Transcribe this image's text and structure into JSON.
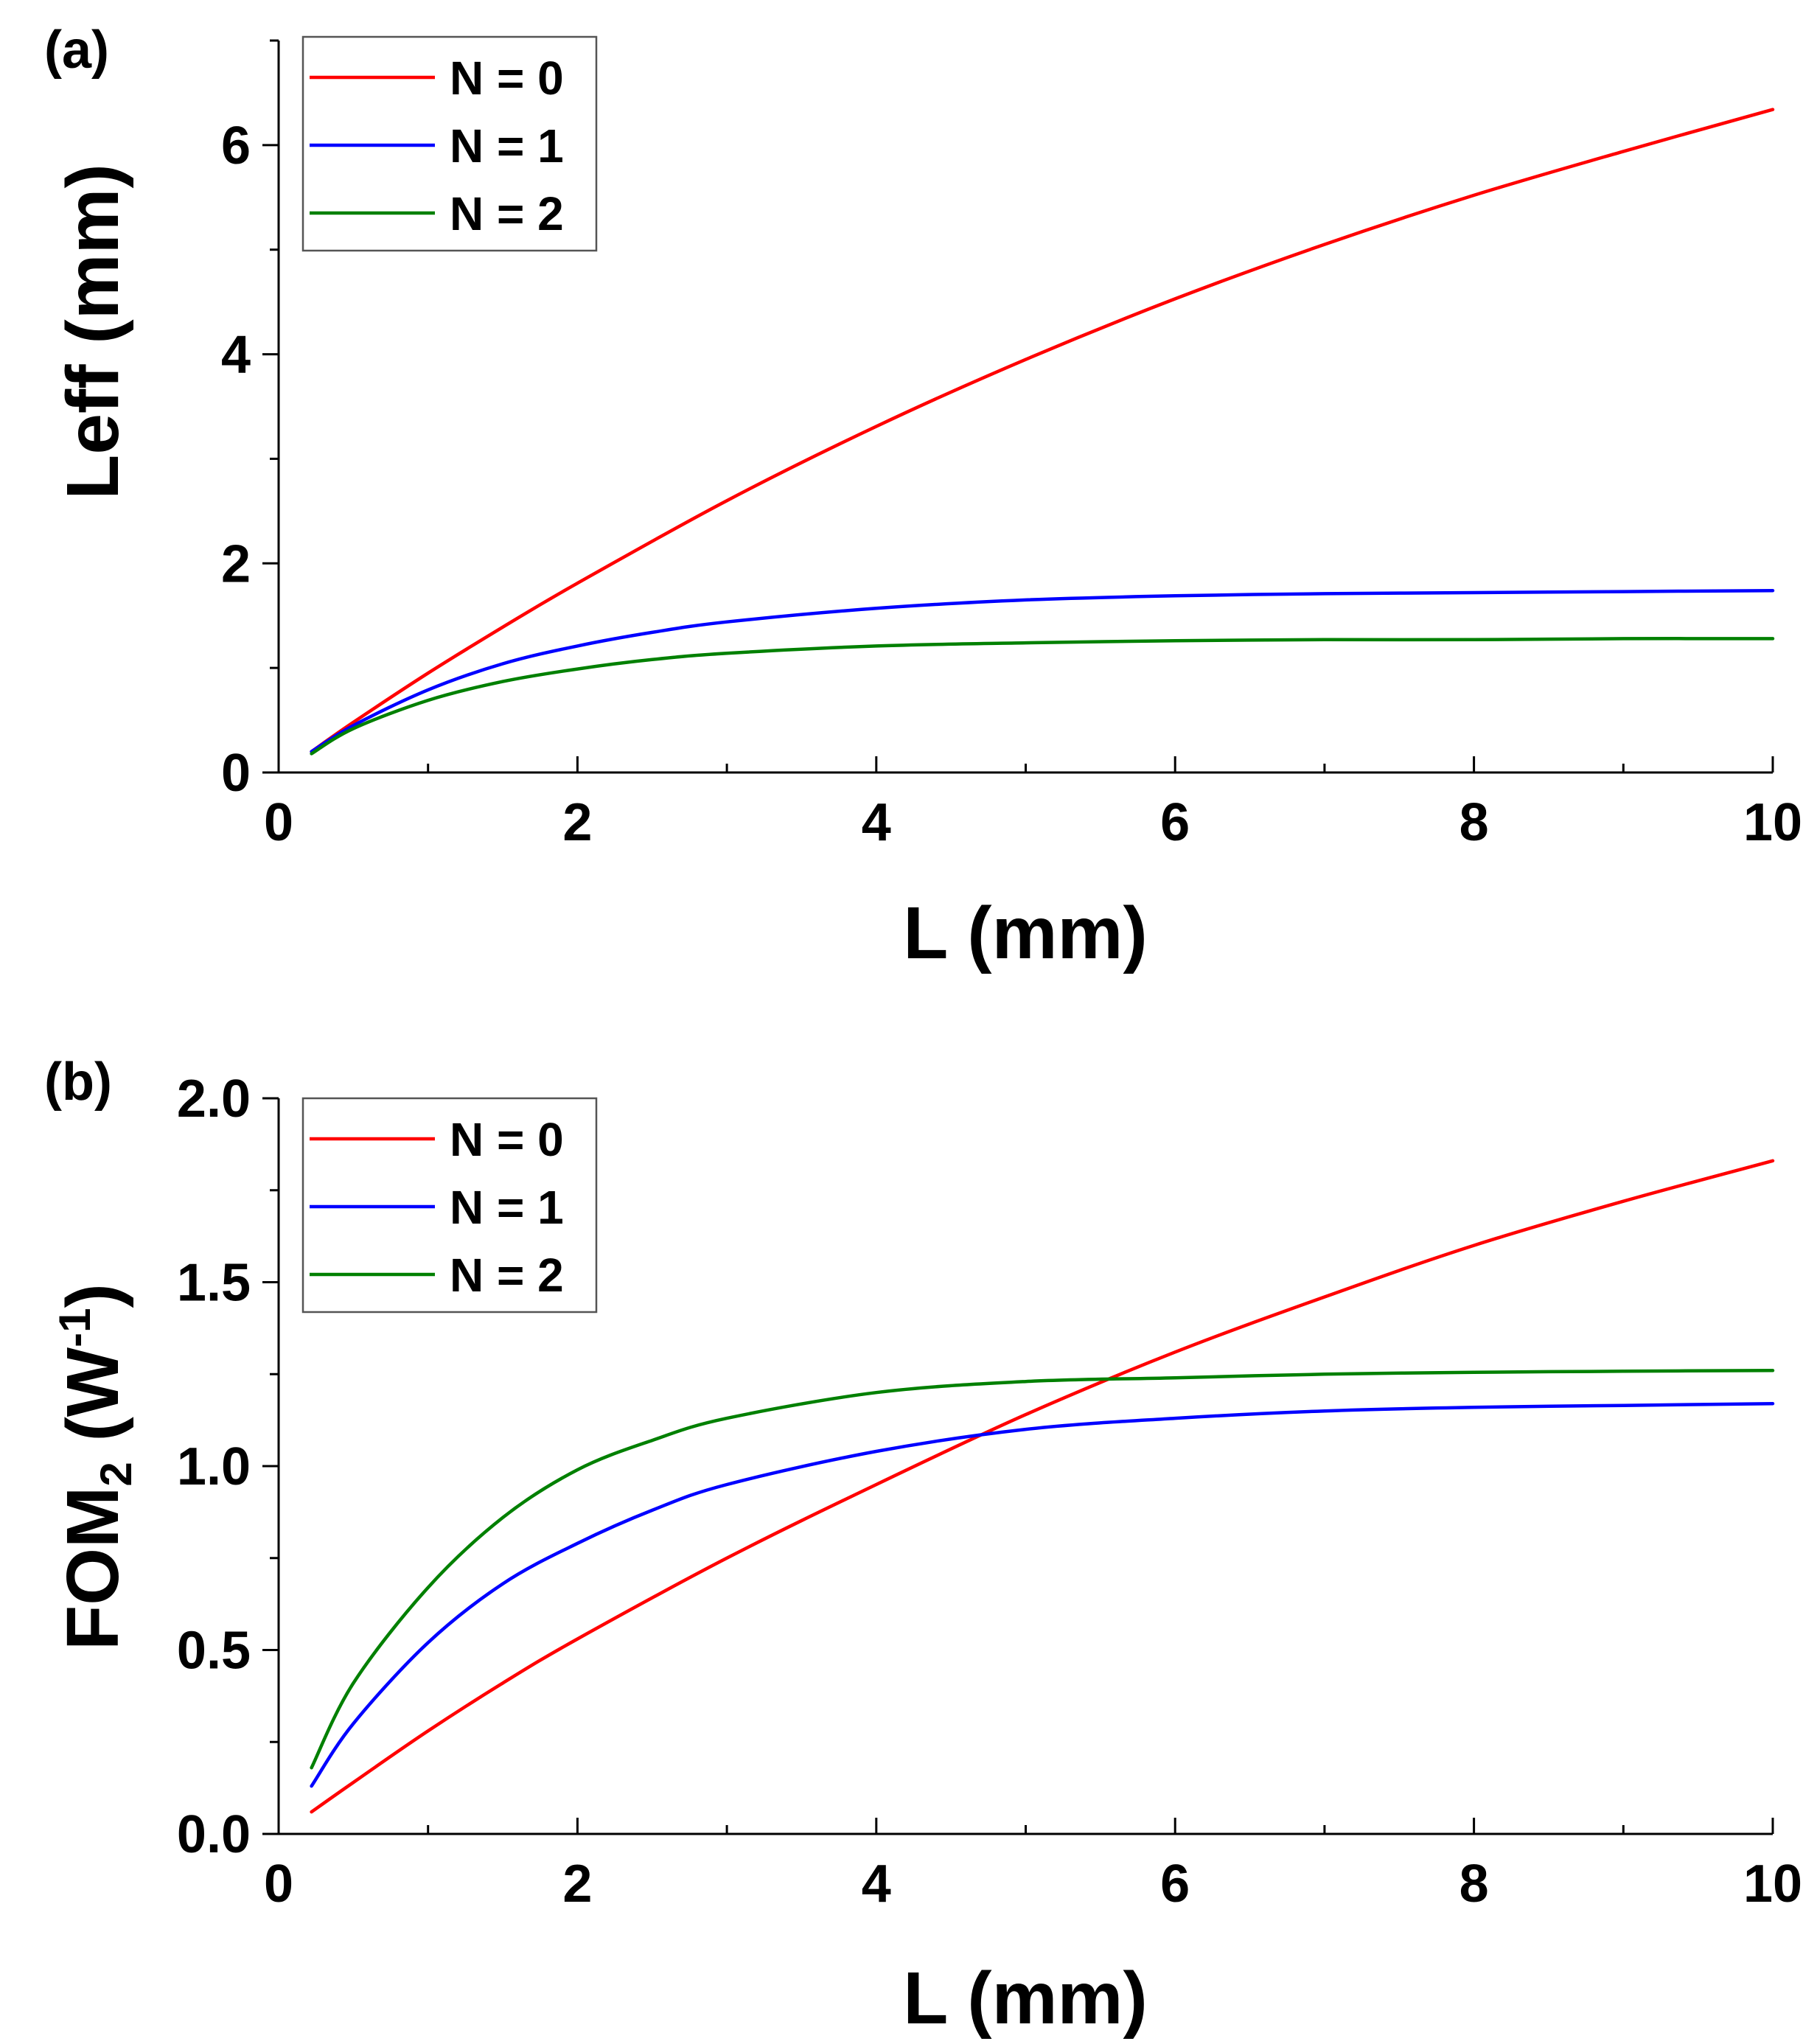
{
  "chart_data": [
    {
      "panel_label": "(a)",
      "type": "line",
      "xlabel": "L (mm)",
      "ylabel": "Leff (mm)",
      "xlim": [
        0,
        10
      ],
      "ylim": [
        0,
        7
      ],
      "xticks": [
        "0",
        "2",
        "4",
        "6",
        "8",
        "10"
      ],
      "yticks": [
        "0",
        "2",
        "4",
        "6"
      ],
      "legend_position": "top-left",
      "series": [
        {
          "name": "N = 0",
          "color": "#ff0000",
          "x": [
            0.22,
            0.5,
            1,
            1.5,
            2,
            3,
            4,
            5,
            6,
            7,
            8,
            9,
            10
          ],
          "y": [
            0.2,
            0.48,
            0.95,
            1.39,
            1.81,
            2.6,
            3.31,
            3.95,
            4.53,
            5.05,
            5.52,
            5.94,
            6.34
          ]
        },
        {
          "name": "N = 1",
          "color": "#0000ff",
          "x": [
            0.22,
            0.5,
            1,
            1.5,
            2,
            2.5,
            3,
            4,
            5,
            6,
            7,
            8,
            9,
            10
          ],
          "y": [
            0.2,
            0.45,
            0.79,
            1.04,
            1.21,
            1.34,
            1.44,
            1.57,
            1.65,
            1.69,
            1.71,
            1.72,
            1.73,
            1.74
          ]
        },
        {
          "name": "N = 2",
          "color": "#008000",
          "x": [
            0.22,
            0.5,
            1,
            1.5,
            2,
            2.5,
            3,
            4,
            5,
            6,
            7,
            8,
            9,
            10
          ],
          "y": [
            0.18,
            0.42,
            0.69,
            0.87,
            0.99,
            1.08,
            1.14,
            1.21,
            1.24,
            1.26,
            1.27,
            1.27,
            1.28,
            1.28
          ]
        }
      ]
    },
    {
      "panel_label": "(b)",
      "type": "line",
      "xlabel": "L (mm)",
      "ylabel_main": "FOM",
      "ylabel_sub": "2",
      "ylabel_open": " (W",
      "ylabel_sup": "-1",
      "ylabel_close": ")",
      "xlim": [
        0,
        10
      ],
      "ylim": [
        0,
        2.0
      ],
      "xticks": [
        "0",
        "2",
        "4",
        "6",
        "8",
        "10"
      ],
      "yticks": [
        "0.0",
        "0.5",
        "1.0",
        "1.5",
        "2.0"
      ],
      "legend_position": "top-left",
      "series": [
        {
          "name": "N = 0",
          "color": "#ff0000",
          "x": [
            0.22,
            0.5,
            1,
            1.5,
            2,
            3,
            4,
            5,
            6,
            7,
            8,
            9,
            10
          ],
          "y": [
            0.06,
            0.14,
            0.28,
            0.41,
            0.53,
            0.75,
            0.95,
            1.14,
            1.31,
            1.46,
            1.6,
            1.72,
            1.83
          ]
        },
        {
          "name": "N = 1",
          "color": "#0000ff",
          "x": [
            0.22,
            0.5,
            1,
            1.5,
            2,
            2.5,
            3,
            4,
            5,
            6,
            7,
            8,
            9,
            10
          ],
          "y": [
            0.13,
            0.3,
            0.52,
            0.68,
            0.79,
            0.88,
            0.95,
            1.04,
            1.1,
            1.13,
            1.15,
            1.16,
            1.165,
            1.17
          ]
        },
        {
          "name": "N = 2",
          "color": "#008000",
          "x": [
            0.22,
            0.5,
            1,
            1.5,
            2,
            2.5,
            3,
            4,
            5,
            6,
            7,
            8,
            9,
            10
          ],
          "y": [
            0.18,
            0.41,
            0.67,
            0.86,
            0.99,
            1.07,
            1.13,
            1.2,
            1.23,
            1.24,
            1.25,
            1.255,
            1.258,
            1.26
          ]
        }
      ]
    }
  ]
}
